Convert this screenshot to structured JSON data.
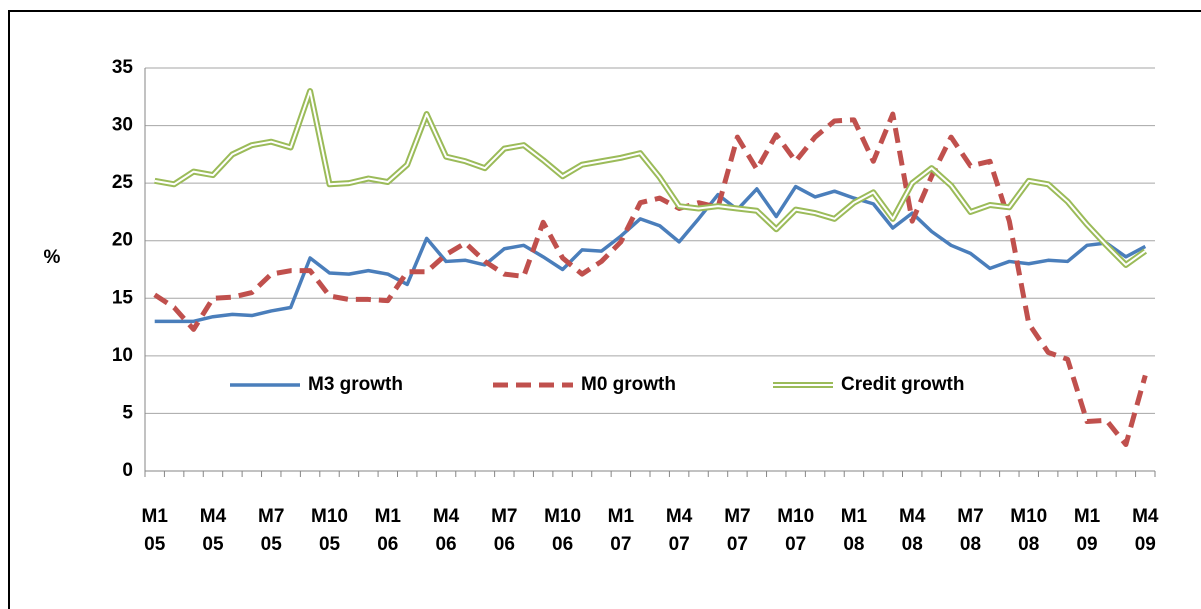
{
  "chart_data": {
    "type": "line",
    "y_label": "%",
    "categories": [
      "M1 05",
      null,
      null,
      "M4 05",
      null,
      null,
      "M7 05",
      null,
      null,
      "M10 05",
      null,
      null,
      "M1 06",
      null,
      null,
      "M4 06",
      null,
      null,
      "M7 06",
      null,
      null,
      "M10 06",
      null,
      null,
      "M1 07",
      null,
      null,
      "M4 07",
      null,
      null,
      "M7 07",
      null,
      null,
      "M10 07",
      null,
      null,
      "M1 08",
      null,
      null,
      "M4 08",
      null,
      null,
      "M7 08",
      null,
      null,
      "M10 08",
      null,
      null,
      "M1 09",
      null,
      null,
      "M4 09"
    ],
    "series": [
      {
        "name": "M3 growth",
        "color": "#4a7ebb",
        "style": "solid",
        "values": [
          13.0,
          13.0,
          13.0,
          13.4,
          13.6,
          13.5,
          13.9,
          14.2,
          18.5,
          17.2,
          17.1,
          17.4,
          17.1,
          16.2,
          20.2,
          18.2,
          18.3,
          17.9,
          19.3,
          19.6,
          18.6,
          17.5,
          19.2,
          19.1,
          20.4,
          21.9,
          21.3,
          19.9,
          21.9,
          24.0,
          22.7,
          24.5,
          22.1,
          24.7,
          23.8,
          24.3,
          23.7,
          23.2,
          21.1,
          22.4,
          20.8,
          19.6,
          18.9,
          17.6,
          18.2,
          18.0,
          18.3,
          18.2,
          19.6,
          19.8,
          18.6,
          19.5
        ]
      },
      {
        "name": "M0 growth",
        "color": "#c0504d",
        "style": "dashed",
        "values": [
          15.3,
          14.2,
          12.3,
          15.0,
          15.1,
          15.5,
          17.1,
          17.4,
          17.4,
          15.2,
          14.9,
          14.9,
          14.8,
          17.3,
          17.3,
          18.8,
          19.8,
          18.2,
          17.1,
          16.9,
          21.6,
          18.5,
          17.1,
          18.2,
          19.9,
          23.3,
          23.7,
          22.8,
          23.3,
          22.9,
          29.0,
          26.2,
          29.2,
          26.9,
          29.0,
          30.4,
          30.5,
          26.9,
          31.0,
          21.7,
          25.6,
          29.0,
          26.5,
          26.9,
          21.7,
          12.8,
          10.3,
          9.7,
          4.3,
          4.4,
          2.3,
          8.3
        ]
      },
      {
        "name": "Credit growth",
        "color": "#9bbb59",
        "style": "double",
        "values": [
          25.2,
          24.9,
          26.0,
          25.7,
          27.5,
          28.3,
          28.6,
          28.1,
          33.0,
          24.9,
          25.0,
          25.4,
          25.1,
          26.6,
          31.0,
          27.3,
          26.9,
          26.3,
          28.0,
          28.3,
          27.0,
          25.6,
          26.6,
          26.9,
          27.2,
          27.6,
          25.5,
          23.0,
          22.8,
          23.0,
          22.8,
          22.6,
          21.0,
          22.7,
          22.4,
          21.9,
          23.3,
          24.2,
          21.9,
          25.0,
          26.3,
          24.8,
          22.5,
          23.1,
          22.9,
          25.2,
          24.9,
          23.4,
          21.4,
          19.6,
          17.9,
          19.1
        ]
      }
    ],
    "ylim": [
      0,
      35
    ],
    "yticks": [
      0,
      5,
      10,
      15,
      20,
      25,
      30,
      35
    ],
    "grid": true
  }
}
